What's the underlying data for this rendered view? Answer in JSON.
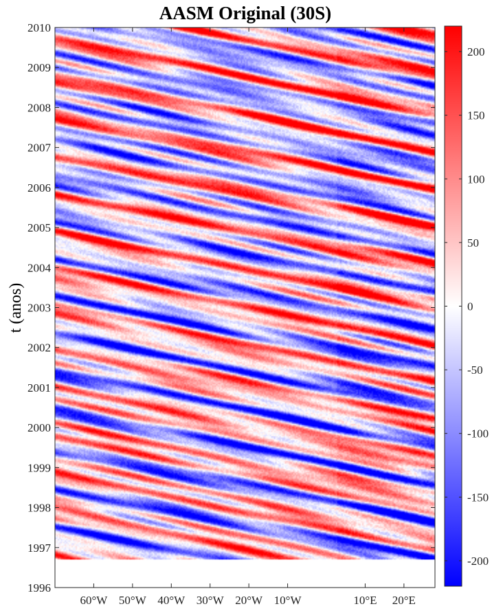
{
  "chart_data": {
    "type": "heatmap",
    "title": "AASM Original (30S)",
    "ylabel": "t (anos)",
    "xlabel": "",
    "x_range_degrees_east": [
      -70,
      28
    ],
    "y_range_years": [
      1996,
      2010
    ],
    "data_start_year": 1996.7,
    "x_ticks": [
      {
        "label": "60°W",
        "value": -60
      },
      {
        "label": "50°W",
        "value": -50
      },
      {
        "label": "40°W",
        "value": -40
      },
      {
        "label": "30°W",
        "value": -30
      },
      {
        "label": "20°W",
        "value": -20
      },
      {
        "label": "10°W",
        "value": -10
      },
      {
        "label": "10°E",
        "value": 10
      },
      {
        "label": "20°E",
        "value": 20
      }
    ],
    "y_ticks": [
      1996,
      1997,
      1998,
      1999,
      2000,
      2001,
      2002,
      2003,
      2004,
      2005,
      2006,
      2007,
      2008,
      2009,
      2010
    ],
    "colorbar": {
      "range": [
        -220,
        220
      ],
      "ticks": [
        -200,
        -150,
        -100,
        -50,
        0,
        50,
        100,
        150,
        200
      ],
      "colormap": [
        "#0000ff",
        "#ffffff",
        "#ff0000"
      ]
    },
    "pattern": "westward-propagating diagonal bands of alternating positive (red) and negative (blue) anomalies"
  }
}
